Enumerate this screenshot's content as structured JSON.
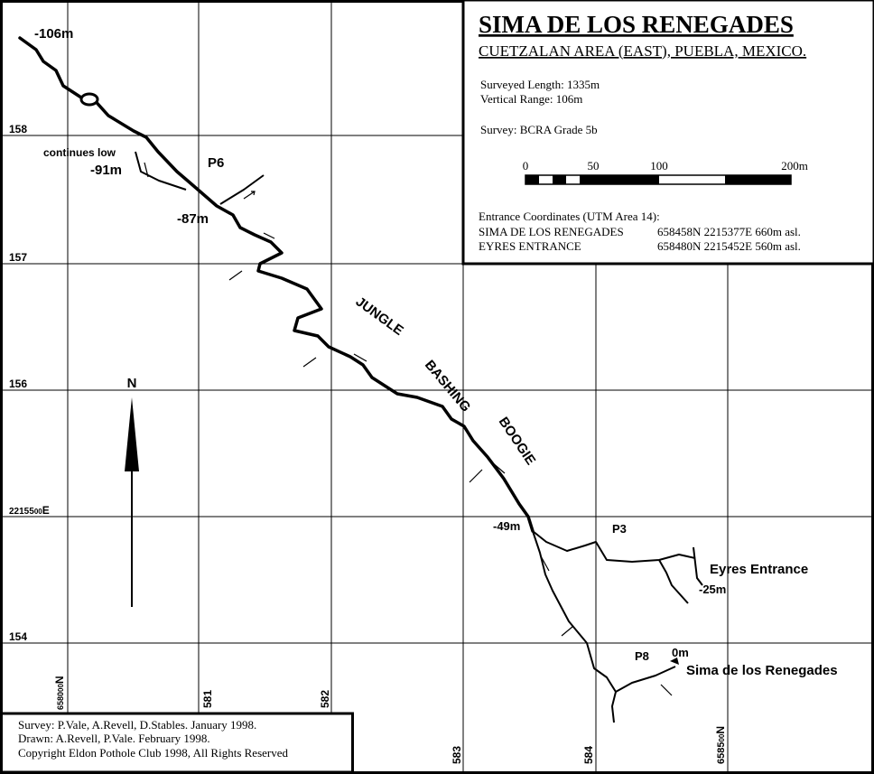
{
  "title_block": {
    "title": "SIMA DE LOS RENEGADES",
    "subtitle": "CUETZALAN AREA (EAST), PUEBLA, MEXICO.",
    "surveyed_length": "Surveyed Length:  1335m",
    "vertical_range": "Vertical Range:  106m",
    "survey_grade": "Survey:  BCRA Grade 5b",
    "scale_labels": [
      "0",
      "50",
      "100",
      "200m"
    ],
    "coordinates_heading": "Entrance Coordinates  (UTM Area 14):",
    "entrances": [
      {
        "name": "SIMA DE LOS RENEGADES",
        "coords": "658458N 2215377E 660m asl."
      },
      {
        "name": "EYRES ENTRANCE",
        "coords": "658480N 2215452E 560m asl."
      }
    ]
  },
  "grid_labels": {
    "north": [
      "158",
      "157",
      "156",
      "154"
    ],
    "north_ref": {
      "main": "22155",
      "small": "00",
      "suffix": "E"
    },
    "east": [
      "581",
      "582",
      "583",
      "584"
    ],
    "east_ref_west": {
      "main": "6580",
      "small": "00",
      "suffix": "N"
    },
    "east_ref_east": {
      "main": "6585",
      "small": "00",
      "suffix": "N"
    }
  },
  "map_labels": {
    "depth_106": "-106m",
    "continues_low": "continues low",
    "depth_91": "-91m",
    "p6": "P6",
    "depth_87": "-87m",
    "jungle": "JUNGLE",
    "bashing": "BASHING",
    "boogie": "BOOGIE",
    "depth_49": "-49m",
    "p3": "P3",
    "eyres_entrance": "Eyres Entrance",
    "depth_25": "-25m",
    "p8": "P8",
    "depth_0": "0m",
    "sima_entrance": "Sima de los Renegades",
    "north_arrow": "N"
  },
  "credits": [
    "Survey: P.Vale, A.Revell, D.Stables.  January 1998.",
    "Drawn: A.Revell, P.Vale.  February 1998.",
    "Copyright Eldon Pothole Club 1998, All Rights Reserved"
  ]
}
